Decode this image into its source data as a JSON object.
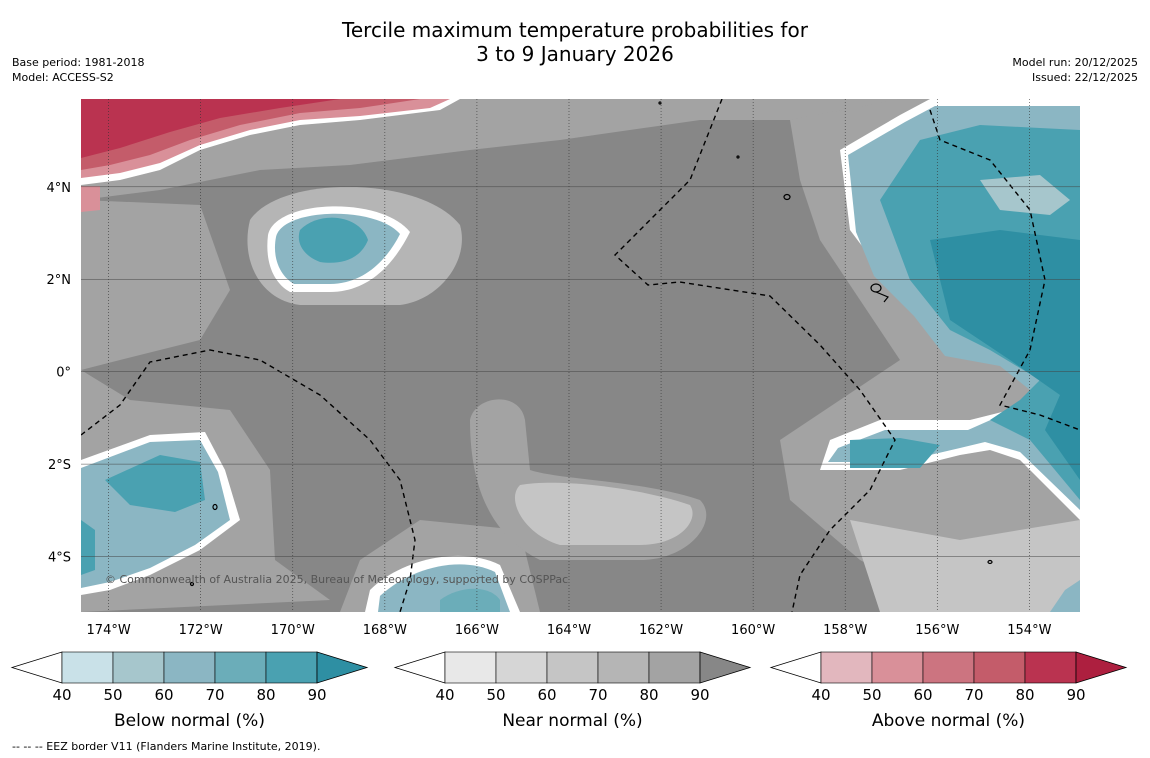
{
  "title_line1": "Tercile maximum temperature probabilities for",
  "title_line2": "3 to 9 January 2026",
  "base_period": "Base period: 1981-2018",
  "model": "Model: ACCESS-S2",
  "model_run": "Model run: 20/12/2025",
  "issued": "Issued: 22/12/2025",
  "copyright": "© Commonwealth of Australia 2025, Bureau of Meteorology, supported by COSPPac",
  "footnote": "--  --  -- EEZ border V11 (Flanders Marine Institute, 2019).",
  "map": {
    "lon_range": [
      -174.6,
      -152.9
    ],
    "lat_range": [
      -5.2,
      5.9
    ],
    "lon_ticks": [
      -174,
      -172,
      -170,
      -168,
      -166,
      -164,
      -162,
      -160,
      -158,
      -156,
      -154
    ],
    "lat_ticks": [
      4,
      2,
      0,
      -2,
      -4
    ],
    "lon_labels": [
      "174°W",
      "172°W",
      "170°W",
      "168°W",
      "166°W",
      "164°W",
      "162°W",
      "160°W",
      "158°W",
      "156°W",
      "154°W"
    ],
    "lat_labels": [
      "4°N",
      "2°N",
      "0°",
      "2°S",
      "4°S"
    ]
  },
  "colorbars": [
    {
      "label": "Below normal (%)",
      "ticks": [
        "40",
        "50",
        "60",
        "70",
        "80",
        "90"
      ],
      "colors": [
        "#c9e1e8",
        "#a6c6cc",
        "#8bb6c3",
        "#6badb9",
        "#4aa1b1",
        "#2e8fa3"
      ]
    },
    {
      "label": "Near normal (%)",
      "ticks": [
        "40",
        "50",
        "60",
        "70",
        "80",
        "90"
      ],
      "colors": [
        "#e8e8e8",
        "#d6d6d6",
        "#c5c5c5",
        "#b5b5b5",
        "#a3a3a3",
        "#878787"
      ]
    },
    {
      "label": "Above normal (%)",
      "ticks": [
        "40",
        "50",
        "60",
        "70",
        "80",
        "90"
      ],
      "colors": [
        "#e2b7be",
        "#d99099",
        "#cc7480",
        "#c45c6a",
        "#ba3350",
        "#ad1f3f"
      ]
    }
  ]
}
